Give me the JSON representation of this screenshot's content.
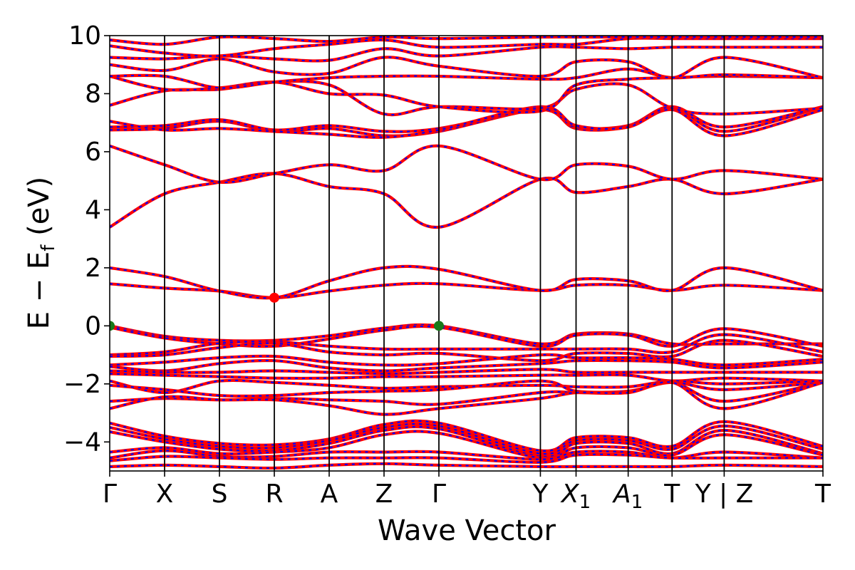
{
  "chart_data": {
    "type": "line",
    "title": "",
    "xlabel": "Wave Vector",
    "ylabel": "E − E_f (eV)",
    "ylabel_parts": {
      "main": "E  −  E",
      "sub": "f",
      "unit": " (eV)"
    },
    "ylim": [
      -5,
      10
    ],
    "yticks": [
      -4,
      -2,
      0,
      2,
      4,
      6,
      8,
      10
    ],
    "ytick_labels": [
      "−4",
      "−2",
      "0",
      "2",
      "4",
      "6",
      "8",
      "10"
    ],
    "x_range": [
      0,
      13
    ],
    "kpoints": [
      {
        "label": "Γ",
        "x": 0
      },
      {
        "label": "X",
        "x": 1
      },
      {
        "label": "S",
        "x": 2
      },
      {
        "label": "R",
        "x": 3
      },
      {
        "label": "A",
        "x": 4
      },
      {
        "label": "Z",
        "x": 5
      },
      {
        "label": "Γ",
        "x": 6
      },
      {
        "label": "Y",
        "x": 7.85
      },
      {
        "label": "X",
        "sub": "1",
        "x": 8.5
      },
      {
        "label": "A",
        "sub": "1",
        "x": 9.45
      },
      {
        "label": "T",
        "x": 10.25
      },
      {
        "label": "Y | Z",
        "x": 11.2
      },
      {
        "label": "T",
        "x": 13
      }
    ],
    "grid": false,
    "legend": "none",
    "line_colors": {
      "solid": "#ff0000",
      "dashed": "#0000ff"
    },
    "marker_colors": {
      "vbm": "#1a7a1a",
      "cbm": "#ff0000"
    },
    "markers": [
      {
        "type": "vbm",
        "x": 0,
        "y": 0.0
      },
      {
        "type": "vbm",
        "x": 6,
        "y": 0.0
      },
      {
        "type": "cbm",
        "x": 3,
        "y": 0.97
      }
    ],
    "series": [
      {
        "values": [
          0.0,
          -0.36,
          -0.5,
          -0.5,
          -0.34,
          -0.08,
          0.0,
          -0.62,
          -0.28,
          -0.28,
          -0.62,
          -0.62,
          -0.62
        ]
      },
      {
        "values": [
          -0.05,
          -0.42,
          -0.62,
          -0.7,
          -0.45,
          -0.15,
          -0.05,
          -0.7,
          -0.32,
          -0.32,
          -0.7,
          -0.1,
          -0.7
        ]
      },
      {
        "values": [
          -1.0,
          -0.9,
          -0.6,
          -0.55,
          -0.7,
          -0.8,
          -0.8,
          -0.8,
          -0.8,
          -0.8,
          -0.9,
          -0.3,
          -0.9
        ]
      },
      {
        "values": [
          -1.05,
          -1.0,
          -0.75,
          -0.6,
          -0.9,
          -1.0,
          -0.95,
          -1.2,
          -0.95,
          -0.95,
          -1.05,
          -0.5,
          -1.05
        ]
      },
      {
        "values": [
          -1.35,
          -1.25,
          -1.1,
          -1.05,
          -1.25,
          -1.35,
          -1.3,
          -1.0,
          -1.1,
          -1.1,
          -1.15,
          -1.35,
          -1.15
        ]
      },
      {
        "values": [
          -1.4,
          -1.55,
          -1.3,
          -1.2,
          -1.45,
          -1.55,
          -1.45,
          -1.3,
          -1.2,
          -1.2,
          -1.25,
          -1.45,
          -1.25
        ]
      },
      {
        "values": [
          -1.55,
          -1.6,
          -1.6,
          -1.55,
          -1.6,
          -1.65,
          -1.6,
          -1.5,
          -1.6,
          -1.6,
          -1.6,
          -1.6,
          -1.6
        ]
      },
      {
        "values": [
          -1.65,
          -1.7,
          -1.75,
          -1.8,
          -1.8,
          -1.75,
          -1.75,
          -1.7,
          -1.7,
          -1.7,
          -1.9,
          -1.8,
          -1.9
        ]
      },
      {
        "values": [
          -1.9,
          -2.3,
          -1.9,
          -1.95,
          -2.05,
          -2.15,
          -2.1,
          -2.05,
          -2.1,
          -2.1,
          -1.9,
          -2.0,
          -1.9
        ]
      },
      {
        "values": [
          -2.05,
          -2.2,
          -2.4,
          -2.4,
          -2.3,
          -2.25,
          -2.2,
          -1.9,
          -2.25,
          -2.25,
          -1.95,
          -2.2,
          -1.95
        ]
      },
      {
        "values": [
          -2.6,
          -2.5,
          -2.55,
          -2.5,
          -2.55,
          -2.6,
          -2.7,
          -2.3,
          -2.3,
          -2.3,
          -1.95,
          -2.6,
          -1.95
        ]
      },
      {
        "values": [
          -2.85,
          -2.45,
          -2.55,
          -2.55,
          -2.75,
          -3.05,
          -2.85,
          -2.5,
          -2.3,
          -2.3,
          -1.95,
          -2.85,
          -1.95
        ]
      },
      {
        "values": [
          -3.35,
          -3.8,
          -4.05,
          -4.1,
          -3.9,
          -3.4,
          -3.35,
          -4.3,
          -3.85,
          -3.85,
          -4.15,
          -3.3,
          -4.15
        ]
      },
      {
        "values": [
          -3.5,
          -3.9,
          -4.15,
          -4.2,
          -3.95,
          -3.5,
          -3.45,
          -4.4,
          -3.95,
          -3.95,
          -4.25,
          -3.45,
          -4.25
        ]
      },
      {
        "values": [
          -3.65,
          -4.0,
          -4.25,
          -4.3,
          -4.05,
          -3.6,
          -3.55,
          -4.5,
          -4.05,
          -4.05,
          -4.4,
          -3.6,
          -4.4
        ]
      },
      {
        "values": [
          -4.35,
          -4.2,
          -4.4,
          -4.35,
          -4.2,
          -3.75,
          -3.7,
          -4.55,
          -4.2,
          -4.2,
          -4.45,
          -3.75,
          -4.45
        ]
      },
      {
        "values": [
          -4.55,
          -4.3,
          -4.5,
          -4.5,
          -4.35,
          -4.35,
          -4.35,
          -4.6,
          -4.35,
          -4.35,
          -4.55,
          -4.35,
          -4.55
        ]
      },
      {
        "values": [
          -4.65,
          -4.5,
          -4.55,
          -4.6,
          -4.55,
          -4.55,
          -4.55,
          -4.7,
          -4.45,
          -4.45,
          -4.55,
          -4.55,
          -4.55
        ]
      },
      {
        "values": [
          -4.85,
          -4.8,
          -4.85,
          -4.9,
          -4.8,
          -4.75,
          -4.8,
          -4.85,
          -4.85,
          -4.85,
          -4.85,
          -4.8,
          -4.85
        ]
      },
      {
        "values": [
          1.45,
          1.3,
          1.2,
          0.97,
          1.2,
          1.4,
          1.45,
          1.22,
          1.4,
          1.4,
          1.22,
          1.4,
          1.22
        ]
      },
      {
        "values": [
          2.0,
          1.7,
          1.2,
          0.97,
          1.55,
          2.0,
          1.95,
          1.22,
          1.6,
          1.55,
          1.22,
          2.0,
          1.22
        ]
      },
      {
        "values": [
          3.4,
          4.55,
          4.95,
          5.25,
          4.8,
          4.55,
          3.4,
          5.05,
          4.6,
          4.8,
          5.05,
          4.55,
          5.05
        ]
      },
      {
        "values": [
          6.2,
          5.55,
          4.95,
          5.25,
          5.55,
          5.35,
          6.2,
          5.05,
          5.55,
          5.5,
          5.05,
          5.35,
          5.05
        ]
      },
      {
        "values": [
          6.75,
          6.8,
          7.05,
          6.7,
          6.8,
          6.55,
          6.7,
          7.45,
          6.8,
          6.85,
          7.45,
          6.55,
          7.45
        ]
      },
      {
        "values": [
          6.85,
          6.9,
          7.1,
          6.75,
          6.9,
          6.7,
          6.8,
          7.45,
          6.85,
          6.9,
          7.55,
          6.7,
          7.55
        ]
      },
      {
        "values": [
          7.05,
          6.75,
          6.8,
          6.7,
          6.6,
          6.5,
          6.75,
          7.55,
          6.9,
          6.85,
          7.55,
          6.85,
          7.55
        ]
      },
      {
        "values": [
          7.6,
          8.1,
          8.15,
          8.4,
          8.3,
          7.3,
          7.55,
          7.5,
          8.15,
          8.3,
          7.5,
          7.3,
          7.5
        ]
      },
      {
        "values": [
          8.6,
          8.15,
          8.2,
          8.4,
          8.0,
          7.95,
          7.55,
          7.4,
          8.3,
          8.5,
          8.55,
          8.6,
          8.55
        ]
      },
      {
        "values": [
          8.6,
          8.6,
          8.2,
          8.4,
          8.55,
          8.6,
          8.6,
          8.5,
          8.55,
          8.85,
          8.55,
          8.65,
          8.55
        ]
      },
      {
        "values": [
          9.0,
          8.8,
          9.2,
          8.75,
          8.7,
          9.25,
          8.95,
          8.6,
          9.1,
          9.1,
          8.55,
          9.25,
          8.55
        ]
      },
      {
        "values": [
          9.25,
          9.2,
          9.3,
          9.2,
          9.15,
          9.55,
          9.3,
          9.6,
          9.6,
          9.55,
          9.6,
          9.6,
          9.6
        ]
      },
      {
        "values": [
          9.65,
          9.4,
          9.3,
          9.55,
          9.7,
          9.85,
          9.6,
          9.7,
          9.7,
          9.9,
          9.9,
          9.9,
          9.9
        ]
      },
      {
        "values": [
          9.85,
          9.7,
          9.95,
          9.9,
          9.8,
          9.95,
          9.9,
          9.95,
          9.95,
          9.95,
          9.95,
          9.95,
          9.95
        ]
      }
    ]
  }
}
